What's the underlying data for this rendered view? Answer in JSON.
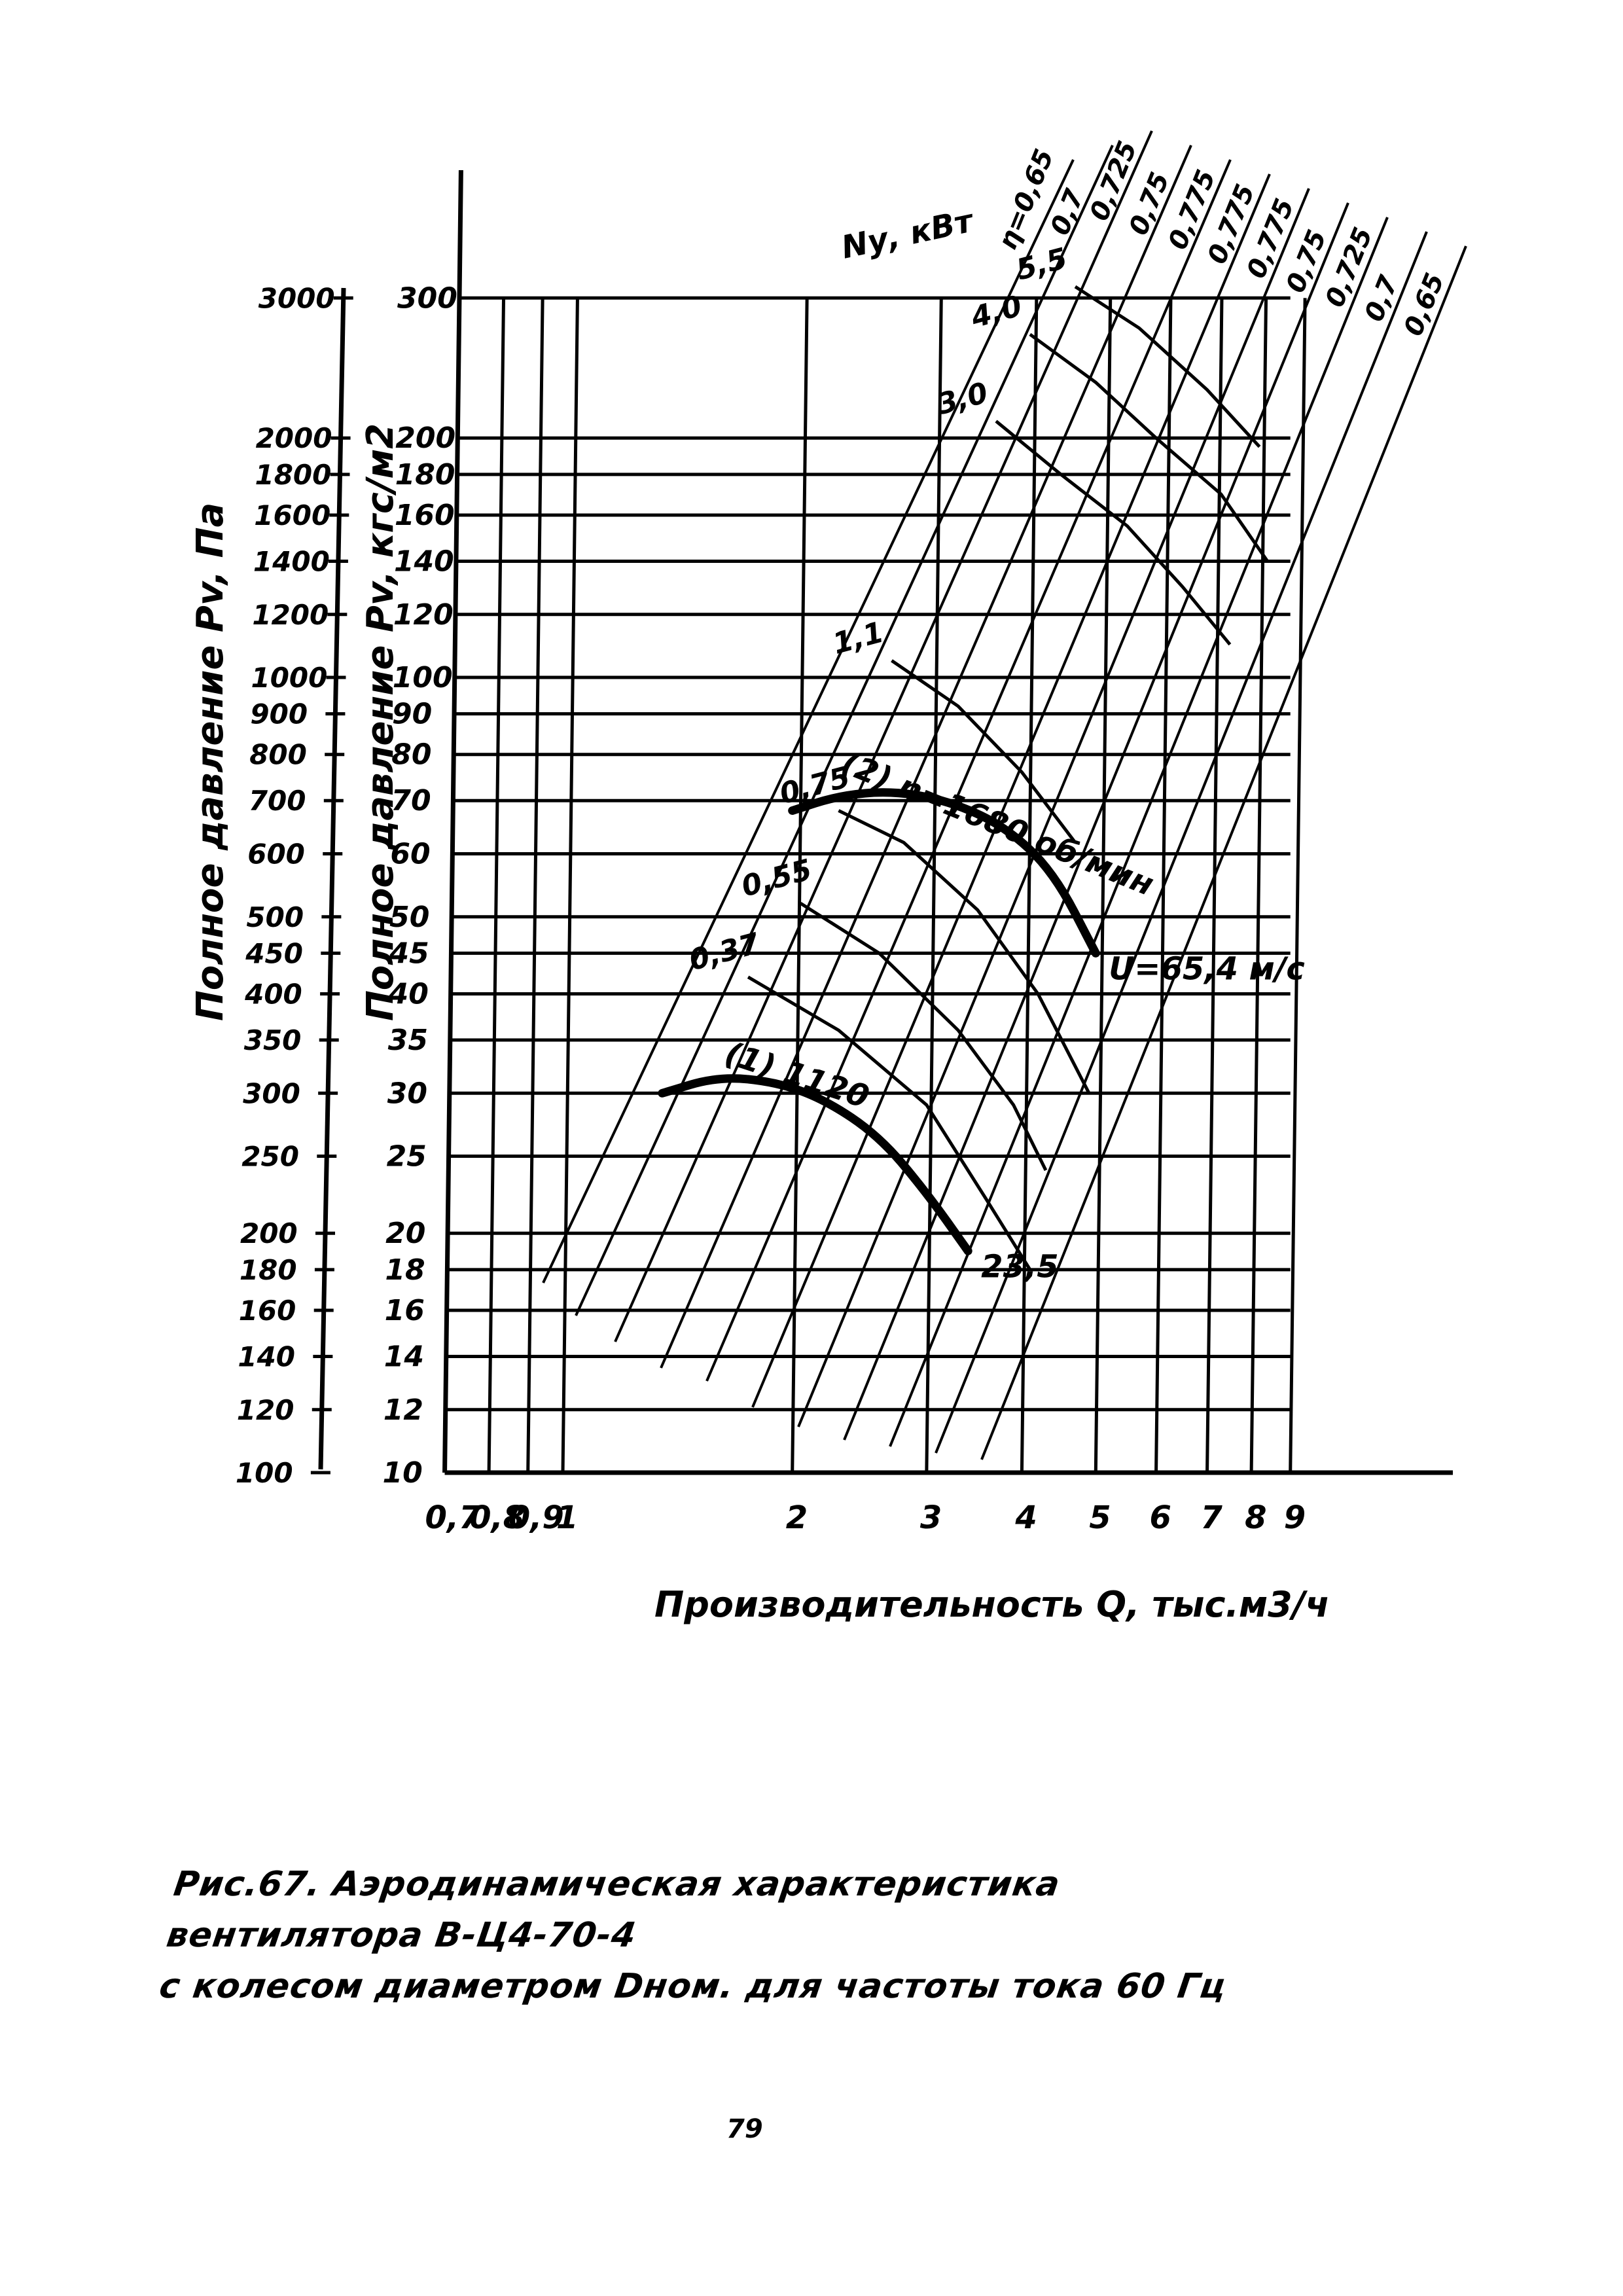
{
  "figure": {
    "caption_line1": "Рис.67. Аэродинамическая  характеристика вентилятора В-Ц4-70-4",
    "caption_line2": "с колесом диаметром  Dном. для частоты тока 60 Гц",
    "page_number": "79"
  },
  "chart_data": {
    "type": "line",
    "title": "Аэродинамическая характеристика вентилятора В-Ц4-70-4 с колесом диаметром Dном. для частоты тока 60 Гц",
    "xlabel": "Производительность Q, тыс.м3/ч",
    "ylabel": "Полное давление Pv, кгс/м2",
    "ylabel_secondary": "Полное давление Pv, Па",
    "xscale": "log",
    "yscale": "log",
    "xlim": [
      0.7,
      9
    ],
    "ylim": [
      10,
      300
    ],
    "ylim_secondary": [
      100,
      3000
    ],
    "grid": true,
    "x_ticks": [
      "0.7",
      "0.8",
      "0.9",
      "1",
      "2",
      "3",
      "4",
      "5",
      "6",
      "7",
      "8",
      "9"
    ],
    "y_ticks": [
      "10",
      "12",
      "14",
      "16",
      "18",
      "20",
      "25",
      "30",
      "35",
      "40",
      "45",
      "50",
      "60",
      "70",
      "80",
      "90",
      "100",
      "120",
      "140",
      "160",
      "180",
      "200",
      "300"
    ],
    "y_ticks_secondary": [
      "100",
      "120",
      "140",
      "160",
      "180",
      "200",
      "250",
      "300",
      "350",
      "400",
      "450",
      "500",
      "600",
      "700",
      "800",
      "900",
      "1000",
      "1200",
      "1400",
      "1600",
      "1800",
      "2000",
      "3000"
    ],
    "series": [
      {
        "name": "(1) n=1120 об/мин",
        "label": "(1) 1120",
        "end_label": "23,5",
        "line": "bold",
        "x": [
          1.35,
          1.6,
          1.9,
          2.2,
          2.6,
          3.0,
          3.4
        ],
        "y": [
          30,
          31.5,
          31,
          29.5,
          26.5,
          22.5,
          19
        ]
      },
      {
        "name": "(2) n=1680 об/мин",
        "label": "(2) n=1680 об/мин",
        "end_label": "U=65,4 м/с",
        "line": "bold",
        "x": [
          2.0,
          2.3,
          2.7,
          3.2,
          3.8,
          4.4,
          5.0
        ],
        "y": [
          68,
          71,
          72,
          70,
          65,
          57,
          45
        ]
      }
    ],
    "power_curves": {
      "label": "Nу, кВт",
      "items": [
        {
          "value": "0,37",
          "x": [
            1.75,
            2.3,
            3.0,
            3.6,
            4.1
          ],
          "y": [
            42,
            36,
            29,
            22,
            18
          ]
        },
        {
          "value": "0,55",
          "x": [
            2.05,
            2.6,
            3.3,
            3.9,
            4.3
          ],
          "y": [
            52,
            45,
            36,
            29,
            24
          ]
        },
        {
          "value": "0,75",
          "x": [
            2.3,
            2.8,
            3.5,
            4.2,
            4.9
          ],
          "y": [
            68,
            62,
            51,
            40,
            30
          ]
        },
        {
          "value": "1,1",
          "x": [
            2.7,
            3.3,
            4.0,
            4.7
          ],
          "y": [
            105,
            92,
            76,
            62
          ]
        },
        {
          "value": "3,0",
          "x": [
            3.7,
            4.5,
            5.5,
            6.5,
            7.5
          ],
          "y": [
            210,
            180,
            155,
            130,
            110
          ]
        },
        {
          "value": "4,0",
          "x": [
            4.1,
            5.0,
            6.0,
            7.3,
            8.4
          ],
          "y": [
            270,
            235,
            200,
            170,
            140
          ]
        },
        {
          "value": "5,5",
          "x": [
            4.7,
            5.7,
            7.0,
            8.2
          ],
          "y": [
            310,
            275,
            230,
            195
          ]
        }
      ]
    },
    "efficiency_lines": {
      "label": "η",
      "values": [
        "0,65",
        "0,7",
        "0,725",
        "0,75",
        "0,775",
        "0,775",
        "0,775",
        "0,75",
        "0,725",
        "0,7",
        "0,65"
      ]
    },
    "annotations": [
      "Nу, кВт",
      "5,5",
      "η=0,65",
      "4,0",
      "3,0",
      "1,1",
      "0,75",
      "0,55",
      "0,37",
      "(2) n=1680 об/мин",
      "U=65,4 м/с",
      "(1) 1120",
      "23,5"
    ]
  }
}
